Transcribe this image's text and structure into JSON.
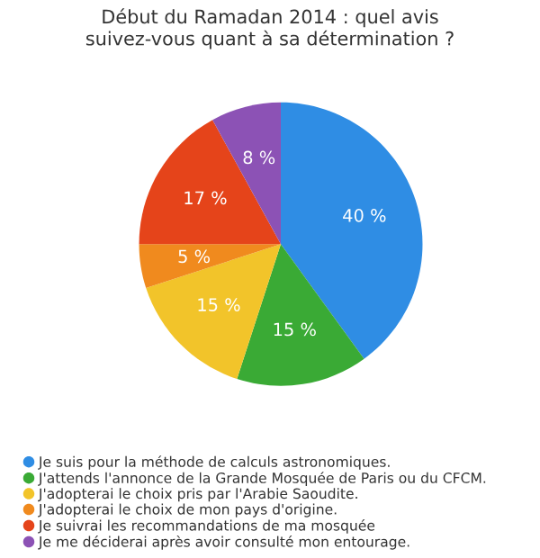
{
  "chart_data": {
    "type": "pie",
    "title": "Début du Ramadan 2014 : quel avis\nsuivez-vous quant à sa détermination ?",
    "categories": [
      "Je suis pour la méthode de calculs astronomiques.",
      "J'attends l'annonce de la Grande Mosquée de Paris ou du CFCM.",
      "J'adopterai le choix pris par l'Arabie Saoudite.",
      "J'adopterai le choix de mon pays d'origine.",
      "Je suivrai les recommandations de ma mosquée",
      "Je me déciderai après avoir consulté mon entourage."
    ],
    "values": [
      40,
      15,
      15,
      5,
      17,
      8
    ],
    "value_labels": [
      "40 %",
      "15 %",
      "15 %",
      "5 %",
      "17 %",
      "8 %"
    ],
    "colors": [
      "#2f8de4",
      "#3aaa35",
      "#f2c42a",
      "#f08a1e",
      "#e5441a",
      "#8c52b5"
    ],
    "legend": "bottom"
  }
}
